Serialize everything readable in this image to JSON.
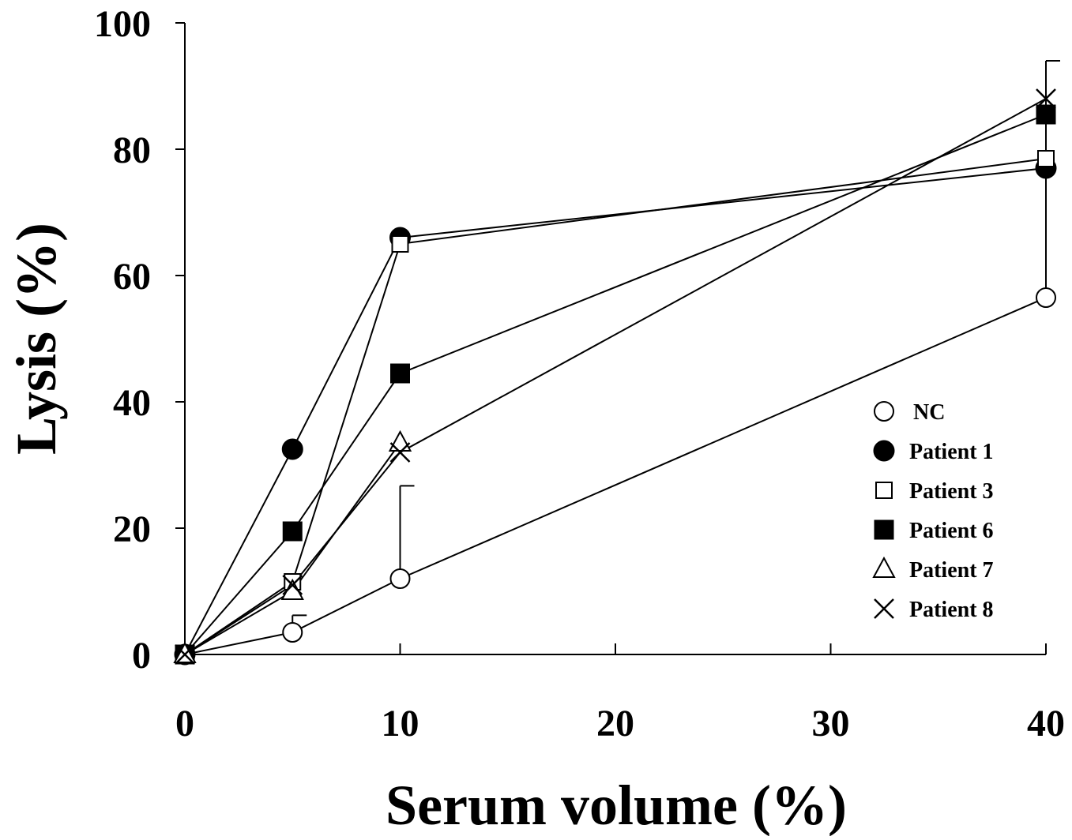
{
  "chart_data": {
    "type": "line",
    "xlabel": "Serum volume (%)",
    "ylabel": "Lysis (%)",
    "xlim": [
      0,
      40
    ],
    "ylim": [
      0,
      100
    ],
    "xticks": [
      "0",
      "10",
      "20",
      "30",
      "40"
    ],
    "yticks": [
      "0",
      "20",
      "40",
      "60",
      "80",
      "100"
    ],
    "x": [
      0,
      5,
      10,
      40
    ],
    "legend_position": "right",
    "series": [
      {
        "name": "NC",
        "marker": "open-circle",
        "values": [
          0,
          3.5,
          12,
          56.5
        ],
        "error_up": [
          null,
          6.2,
          26.7,
          94
        ]
      },
      {
        "name": "Patient 1",
        "marker": "filled-circle",
        "values": [
          0,
          32.5,
          66,
          77
        ]
      },
      {
        "name": "Patient 3",
        "marker": "open-square",
        "values": [
          0,
          11.5,
          65,
          78.5
        ]
      },
      {
        "name": "Patient 6",
        "marker": "filled-square",
        "values": [
          0,
          19.5,
          44.5,
          85.5
        ]
      },
      {
        "name": "Patient 7",
        "marker": "open-triangle",
        "values": [
          0,
          10,
          33.5,
          null
        ]
      },
      {
        "name": "Patient 8",
        "marker": "cross",
        "values": [
          0,
          11,
          32,
          88
        ]
      }
    ]
  }
}
